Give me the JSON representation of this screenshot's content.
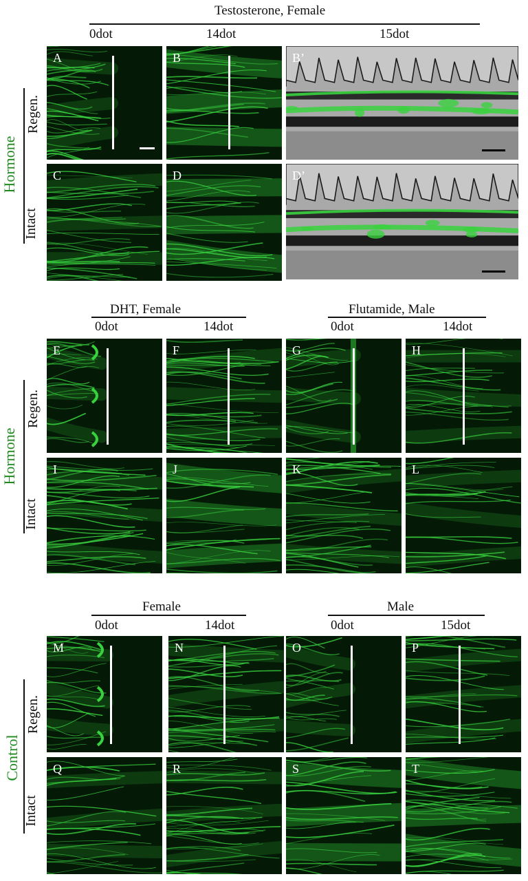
{
  "headers": {
    "testosterone": "Testosterone, Female",
    "dht": "DHT, Female",
    "flutamide": "Flutamide, Male",
    "female": "Female",
    "male": "Male"
  },
  "timepoints": {
    "t0": "0dot",
    "t14": "14dot",
    "t15": "15dot"
  },
  "side_labels": {
    "hormone": "Hormone",
    "control": "Control",
    "regen": "Regen.",
    "intact": "Intact"
  },
  "panel_labels": {
    "A": "A",
    "B": "B",
    "Bp": "B’",
    "C": "C",
    "D": "D",
    "Dp": "D’",
    "E": "E",
    "F": "F",
    "G": "G",
    "H": "H",
    "I": "I",
    "J": "J",
    "K": "K",
    "L": "L",
    "M": "M",
    "N": "N",
    "O": "O",
    "P": "P",
    "Q": "Q",
    "R": "R",
    "S": "S",
    "T": "T"
  },
  "colors": {
    "fluorescence": "#39d23f",
    "background": "#041a06",
    "hormone_label": "#1f8a1f",
    "control_label": "#1f8a1f"
  }
}
